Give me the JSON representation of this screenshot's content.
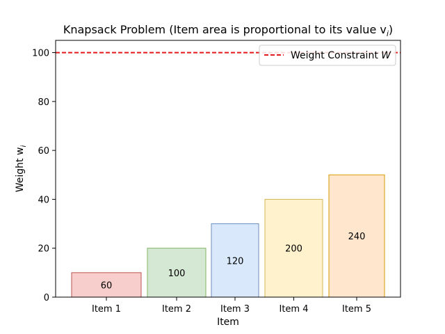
{
  "chart_data": {
    "type": "bar",
    "title": "Knapsack Problem (Item area is proportional to its value v",
    "title_subscript": "i",
    "title_suffix": ")",
    "xlabel": "Item",
    "ylabel": "Weight w",
    "ylabel_subscript": "i",
    "ylim": [
      0,
      105
    ],
    "yticks": [
      0,
      20,
      40,
      60,
      80,
      100
    ],
    "categories": [
      "Item 1",
      "Item 2",
      "Item 3",
      "Item 4",
      "Item 5"
    ],
    "weights": [
      10,
      20,
      30,
      40,
      50
    ],
    "values": [
      60,
      100,
      120,
      200,
      240
    ],
    "value_labels": [
      "60",
      "100",
      "120",
      "200",
      "240"
    ],
    "colors": {
      "fills": [
        "#f8cecc",
        "#d5e8d4",
        "#dae8fc",
        "#fff2cc",
        "#ffe6cc"
      ],
      "strokes": [
        "#b85450",
        "#82b366",
        "#6c8ebf",
        "#d6b656",
        "#d79b00"
      ],
      "constraint": "#e31a1c"
    },
    "constraint": {
      "value": 100,
      "label": "Weight Constraint W",
      "label_main": "Weight Constraint ",
      "label_symbol": "W"
    },
    "legend_position": "top-right",
    "grid": false
  }
}
